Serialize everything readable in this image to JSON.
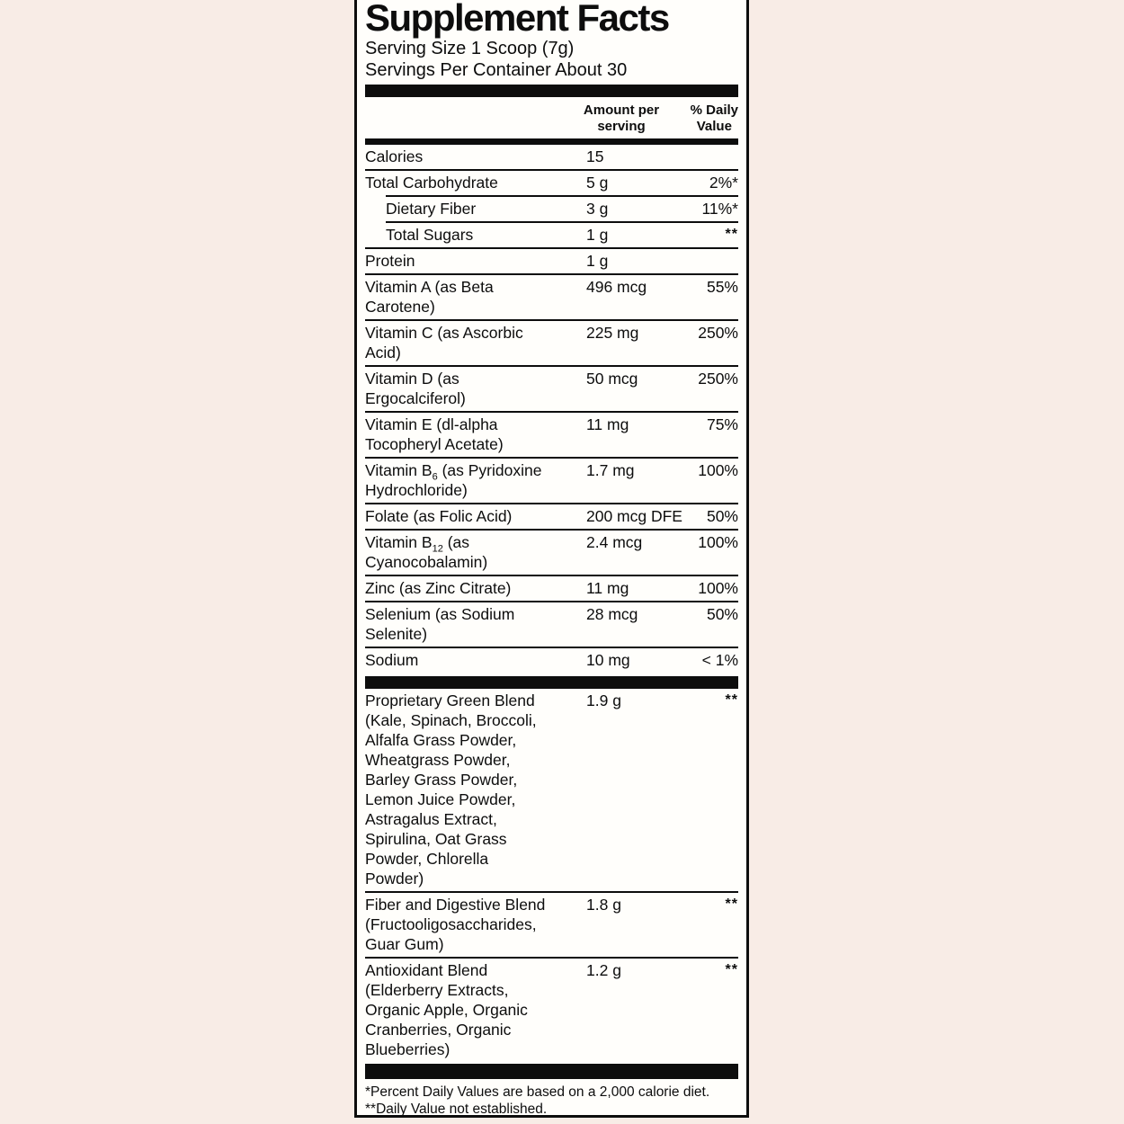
{
  "label": {
    "title": "Supplement Facts",
    "serving_size": "Serving Size 1 Scoop (7g)",
    "servings_per_container": "Servings Per Container About 30",
    "columns": {
      "amount": "Amount per\nserving",
      "daily_value": "% Daily\nValue"
    },
    "main_rows": [
      {
        "name": "Calories",
        "amount": "15",
        "dv": ""
      },
      {
        "name": "Total Carbohydrate",
        "amount": "5 g",
        "dv": "2%*"
      },
      {
        "name": "Dietary Fiber",
        "indent": true,
        "sep": "indent",
        "amount": "3 g",
        "dv": "11%*"
      },
      {
        "name": "Total Sugars",
        "indent": true,
        "sep": "indent",
        "amount": "1 g",
        "dv": "**"
      },
      {
        "name": "Protein",
        "amount": "1 g",
        "dv": ""
      },
      {
        "name": "Vitamin A (as Beta\nCarotene)",
        "amount": "496 mcg",
        "dv": "55%"
      },
      {
        "name": "Vitamin C (as Ascorbic\nAcid)",
        "amount": "225 mg",
        "dv": "250%"
      },
      {
        "name": "Vitamin D (as\nErgocalciferol)",
        "amount": "50 mcg",
        "dv": "250%"
      },
      {
        "name": "Vitamin E (dl-alpha\nTocopheryl Acetate)",
        "amount": "11 mg",
        "dv": "75%"
      },
      {
        "name_pre": "Vitamin B",
        "name_sub": "6",
        "name_post": " (as Pyridoxine\nHydrochloride)",
        "amount": "1.7 mg",
        "dv": "100%"
      },
      {
        "name": "Folate (as Folic Acid)",
        "amount": "200 mcg DFE",
        "dv": "50%"
      },
      {
        "name_pre": "Vitamin B",
        "name_sub": "12",
        "name_post": " (as\nCyanocobalamin)",
        "amount": "2.4 mcg",
        "dv": "100%"
      },
      {
        "name": "Zinc (as Zinc Citrate)",
        "amount": "11 mg",
        "dv": "100%"
      },
      {
        "name": "Selenium (as Sodium\nSelenite)",
        "amount": "28 mcg",
        "dv": "50%"
      },
      {
        "name": "Sodium",
        "amount": "10 mg",
        "dv": "< 1%"
      }
    ],
    "blend_rows": [
      {
        "name": "Proprietary Green Blend\n(Kale, Spinach, Broccoli,\nAlfalfa Grass Powder,\nWheatgrass Powder,\nBarley Grass Powder,\nLemon Juice Powder,\nAstragalus Extract,\nSpirulina, Oat Grass\nPowder, Chlorella\nPowder)",
        "amount": "1.9 g",
        "dv": "**"
      },
      {
        "name": "Fiber and Digestive Blend\n(Fructooligosaccharides,\nGuar Gum)",
        "amount": "1.8 g",
        "dv": "**"
      },
      {
        "name": "Antioxidant Blend\n(Elderberry Extracts,\nOrganic Apple, Organic\nCranberries, Organic\nBlueberries)",
        "amount": "1.2 g",
        "dv": "**"
      }
    ],
    "footnotes": [
      "*Percent Daily Values are based on a 2,000 calorie diet.",
      "**Daily Value not established."
    ],
    "colors": {
      "page_background": "#f8ece6",
      "panel_background": "#fffefb",
      "ink": "#0d0d0d"
    }
  }
}
